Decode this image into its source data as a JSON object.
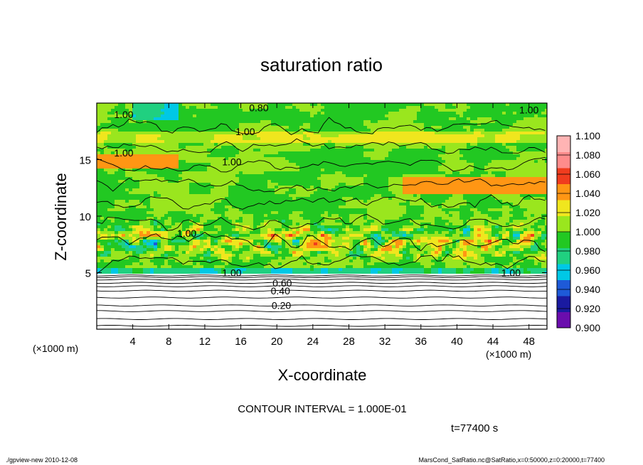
{
  "chart_data": {
    "type": "heatmap",
    "title": "saturation ratio",
    "xlabel": "X-coordinate",
    "ylabel": "Z-coordinate",
    "x_unit": "(×1000 m)",
    "y_unit": "(×1000 m)",
    "xlim": [
      0,
      50
    ],
    "ylim": [
      0,
      20
    ],
    "x_ticks": [
      4,
      8,
      12,
      16,
      20,
      24,
      28,
      32,
      36,
      40,
      44,
      48
    ],
    "y_ticks": [
      5,
      10,
      15
    ],
    "colorbar": {
      "levels": [
        0.9,
        0.92,
        0.94,
        0.96,
        0.98,
        1.0,
        1.02,
        1.04,
        1.06,
        1.08,
        1.1
      ],
      "labels": [
        "0.900",
        "0.920",
        "0.940",
        "0.960",
        "0.980",
        "1.000",
        "1.020",
        "1.040",
        "1.060",
        "1.080",
        "1.100"
      ],
      "colors": [
        "#6a0dad",
        "#1a1aa0",
        "#1e5ad8",
        "#00c8e6",
        "#20d080",
        "#22c822",
        "#9ae61e",
        "#f0e61e",
        "#ff9614",
        "#f03c1e",
        "#ff8c8c",
        "#ffb4b4"
      ]
    },
    "contour_labels": [
      {
        "text": "0.20",
        "x": 20.5,
        "z": 2.1
      },
      {
        "text": "0.40",
        "x": 20.4,
        "z": 3.4
      },
      {
        "text": "0.60",
        "x": 20.6,
        "z": 4.1
      },
      {
        "text": "0.80",
        "x": 18.0,
        "z": 19.6
      },
      {
        "text": "1.00",
        "x": 3.0,
        "z": 19.0
      },
      {
        "text": "1.00",
        "x": 16.5,
        "z": 17.5
      },
      {
        "text": "1.00",
        "x": 3.0,
        "z": 15.6
      },
      {
        "text": "1.00",
        "x": 15.0,
        "z": 14.8
      },
      {
        "text": "1.00",
        "x": 48.0,
        "z": 19.4
      },
      {
        "text": "1.00",
        "x": 15.0,
        "z": 5.0
      },
      {
        "text": "1.00",
        "x": 46.0,
        "z": 5.0
      },
      {
        "text": "1.00",
        "x": 10.0,
        "z": 8.5
      }
    ],
    "contour_interval_text": "CONTOUR INTERVAL = 1.000E-01",
    "time_text": "t=77400 s"
  },
  "footer": {
    "left": "./gpview-new 2010-12-08",
    "right": "MarsCond_SatRatio.nc@SatRatio,x=0:50000,z=0:20000,t=77400"
  }
}
